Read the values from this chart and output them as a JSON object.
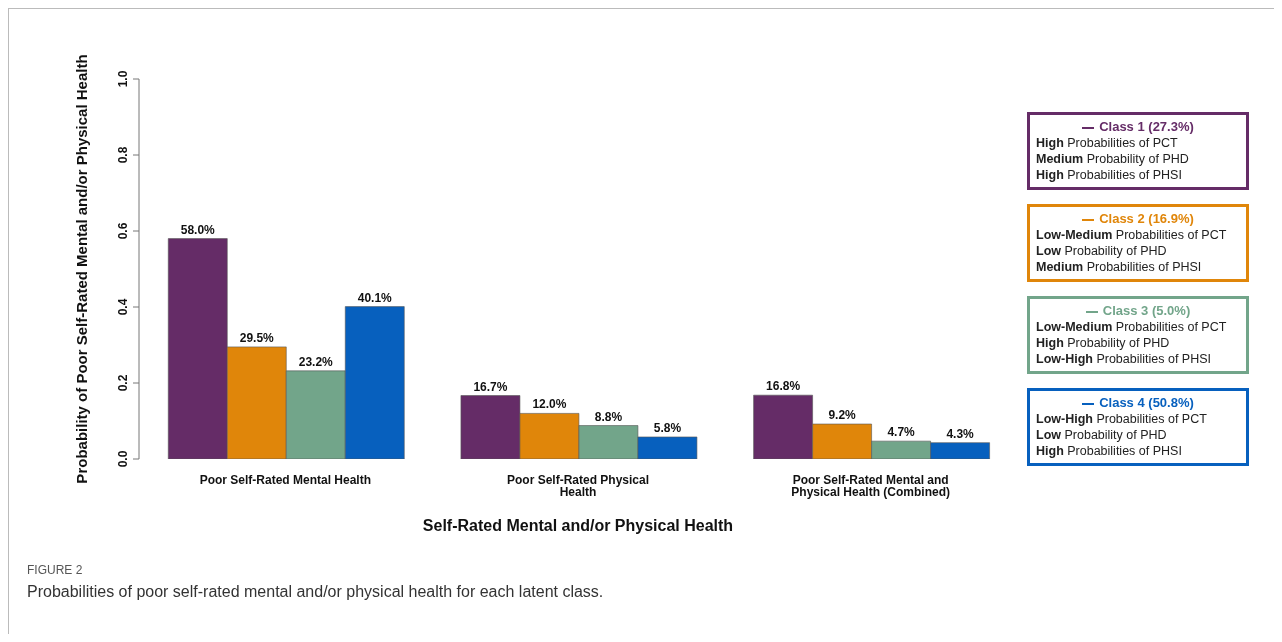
{
  "chart_data": {
    "type": "bar",
    "xlabel": "Self-Rated Mental and/or Physical Health",
    "ylabel": "Probability of Poor Self-Rated Mental and/or Physical Health",
    "categories": [
      "Poor Self-Rated Mental Health",
      "Poor Self-Rated Physical Health",
      "Poor Self-Rated Mental and Physical Health (Combined)"
    ],
    "series": [
      {
        "name": "Class 1 (27.3%)",
        "color": "#652c67",
        "values": [
          0.58,
          0.167,
          0.168
        ],
        "value_labels": [
          "58.0%",
          "16.7%",
          "16.8%"
        ]
      },
      {
        "name": "Class 2 (16.9%)",
        "color": "#e0860a",
        "values": [
          0.295,
          0.12,
          0.092
        ],
        "value_labels": [
          "29.5%",
          "12.0%",
          "9.2%"
        ]
      },
      {
        "name": "Class 3 (5.0%)",
        "color": "#72a58a",
        "values": [
          0.232,
          0.088,
          0.047
        ],
        "value_labels": [
          "23.2%",
          "8.8%",
          "4.7%"
        ]
      },
      {
        "name": "Class 4 (50.8%)",
        "color": "#0760be",
        "values": [
          0.401,
          0.058,
          0.043
        ],
        "value_labels": [
          "40.1%",
          "5.8%",
          "4.3%"
        ]
      }
    ],
    "ylim": [
      0,
      1
    ],
    "yticks": [
      "0.0",
      "0.2",
      "0.4",
      "0.6",
      "0.8",
      "1.0"
    ],
    "grid": false,
    "legend": "right",
    "annotations": [
      "High Probabilities of PCT",
      "Medium Probability of PHD",
      "High Probabilities of PHSI",
      "Low-Medium Probabilities of PCT",
      "Low Probability of PHD",
      "Medium Probabilities of PHSI",
      "Low-Medium Probabilities of PCT",
      "High Probability of PHD",
      "Low-High Probabilities of PHSI",
      "Low-High Probabilities of PCT",
      "Low Probability of PHD",
      "High Probabilities of PHSI",
      "FIGURE 2",
      "Probabilities of poor self-rated mental and/or physical health for each latent class."
    ]
  }
}
